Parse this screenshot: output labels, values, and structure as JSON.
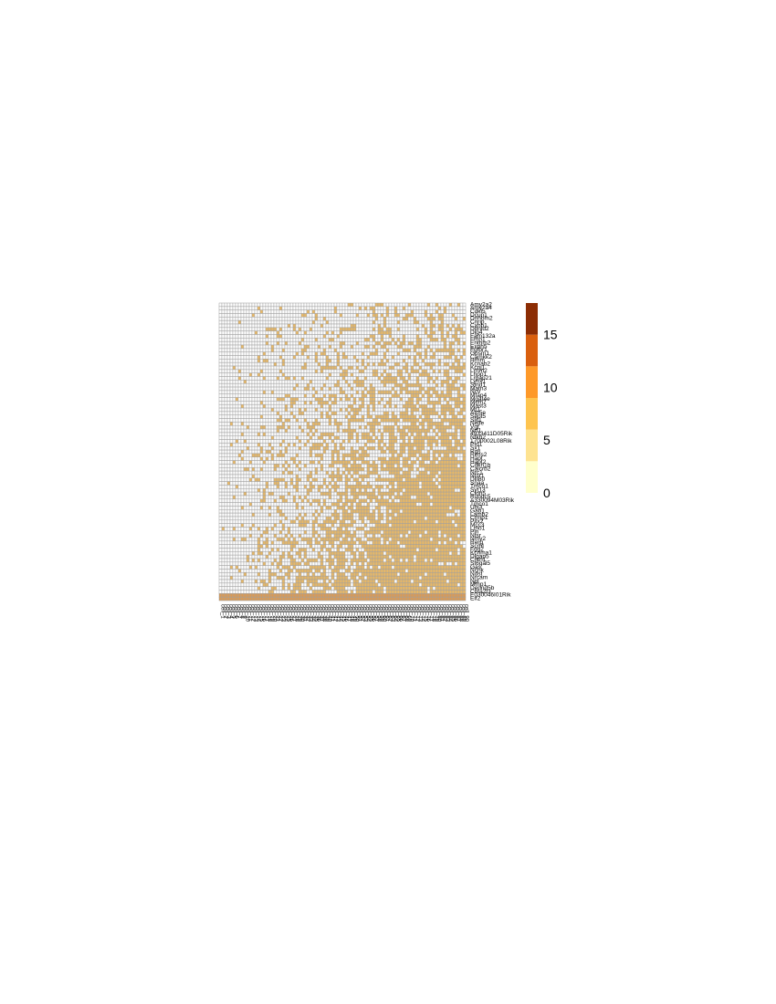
{
  "chart_data": {
    "type": "heatmap",
    "title": "",
    "xlabel": "",
    "ylabel": "",
    "rows": [
      "Amy2a2",
      "Amy2a4",
      "Cdkl5",
      "Dcun1",
      "Dnhbm2",
      "Cnrip",
      "Cxhb1",
      "Dbnld2",
      "Dlg4",
      "Fam132a",
      "Fmn1",
      "Enthm2",
      "Exph5",
      "Fgfbr1",
      "Gpsm1",
      "Camkk2",
      "Hrnm",
      "Kcnab2",
      "Kcnj1",
      "Lrrtm2",
      "Lhpp1",
      "Lrpap21",
      "Lynx1",
      "Stnd1",
      "Matn3",
      "Ncv",
      "Mfap4",
      "Mgat4e",
      "Mcm7",
      "Mast3",
      "Mt1",
      "Atp5e",
      "Sept5",
      "Slit1",
      "Nelfe",
      "Vgf",
      "Nrf1",
      "4933411D05Rik",
      "Nfkb2",
      "1700002L08Rik",
      "Ptd1",
      "Sx1",
      "Rgs",
      "Rims2",
      "Hapt",
      "Hapt2",
      "Cdkn1b",
      "Calcrb2",
      "Nrc1",
      "Ntsr1",
      "Dlll80",
      "Snaa",
      "Tmco1",
      "Syt13",
      "Cldn5",
      "Rundc5",
      "A330094M03Rik",
      "Tmco1",
      "Ubl3",
      "Gab1",
      "Lamb2",
      "Crmp1",
      "Pitx2",
      "Mcc3",
      "Lmo1",
      "Pln",
      "Ntsr",
      "Nmy2",
      "Rerg",
      "Scrhl",
      "Fgg2",
      "Kcnma1",
      "Dlgap5",
      "Cntn1",
      "St6gal5",
      "Gas",
      "Ncnk",
      "Ndst",
      "Nrcam",
      "Npl",
      "Mmp1",
      "Dennd5b",
      "Cbfa2t3",
      "E030046I01Rik",
      "Eif2"
    ],
    "columns": [
      "cell_1",
      "cell_2",
      "cell_3",
      "cell_4",
      "cell_5",
      "cell_6",
      "cell_7",
      "cell_8",
      "cell_9",
      "cell_10",
      "cell_11",
      "cell_12",
      "cell_13",
      "cell_14",
      "cell_15",
      "cell_16",
      "cell_17",
      "cell_18",
      "cell_19",
      "cell_20",
      "cell_21",
      "cell_22",
      "cell_23",
      "cell_24",
      "cell_25",
      "cell_26",
      "cell_27",
      "cell_28",
      "cell_29",
      "cell_30",
      "cell_31",
      "cell_32",
      "cell_33",
      "cell_34",
      "cell_35",
      "cell_36",
      "cell_37",
      "cell_38",
      "cell_39",
      "cell_40",
      "cell_41",
      "cell_42",
      "cell_43",
      "cell_44",
      "cell_45",
      "cell_46",
      "cell_47",
      "cell_48",
      "cell_49",
      "cell_50",
      "cell_51",
      "cell_52",
      "cell_53",
      "cell_54",
      "cell_55",
      "cell_56",
      "cell_57",
      "cell_58",
      "cell_59",
      "cell_60",
      "cell_61",
      "cell_62",
      "cell_63",
      "cell_64",
      "cell_65",
      "cell_66",
      "cell_67",
      "cell_68",
      "cell_69",
      "cell_70",
      "cell_71",
      "cell_72",
      "cell_73",
      "cell_74",
      "cell_75",
      "cell_76",
      "cell_77",
      "cell_78",
      "cell_79",
      "cell_80",
      "cell_81",
      "cell_82",
      "cell_83",
      "cell_84",
      "cell_85",
      "cell_86",
      "cell_87",
      "cell_88",
      "cell_89",
      "cell_90"
    ],
    "value_range": [
      0,
      18
    ],
    "color_scale": {
      "breaks": [
        0,
        3,
        6,
        9,
        12,
        15,
        18
      ],
      "colors": [
        "#ffffcc",
        "#fee391",
        "#fec44f",
        "#fe9929",
        "#d95f0e",
        "#8c2d04"
      ]
    },
    "legend": {
      "position": "right",
      "ticks": [
        0,
        5,
        10,
        15
      ]
    },
    "grid": true,
    "grid_color": "#a0a0a0",
    "pattern": "Values rise from left (mostly 0) to right (3-6); bottom two rows (E030046I01Rik, Eif2) are consistently high (~7-9)."
  }
}
